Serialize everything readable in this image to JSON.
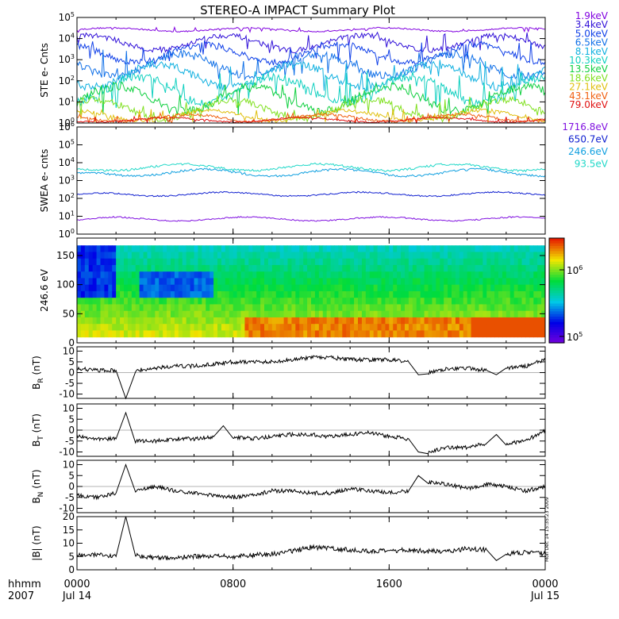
{
  "title": "STEREO-A IMPACT Summary Plot",
  "time_axis": {
    "unit_label": "hhmm",
    "year_label": "2007",
    "ticks": [
      {
        "t": 0,
        "line1": "0000",
        "line2": "Jul 14"
      },
      {
        "t": 8,
        "line1": "0800",
        "line2": ""
      },
      {
        "t": 16,
        "line1": "1600",
        "line2": ""
      },
      {
        "t": 24,
        "line1": "0000",
        "line2": "Jul 15"
      }
    ],
    "range_hours": [
      0,
      24
    ]
  },
  "timestamp": "Mon Dec 14 15:35:23 2009",
  "colors": {
    "ste": [
      "#8000e0",
      "#3010d8",
      "#1040e8",
      "#1070e8",
      "#10b0e0",
      "#10d0c0",
      "#10d040",
      "#80e020",
      "#e0c010",
      "#f06010",
      "#e01010"
    ],
    "swea": [
      "#8010e0",
      "#1020d0",
      "#10a0e0",
      "#20d8c8"
    ]
  },
  "chart_data": [
    {
      "type": "line",
      "ylabel": "STE e- Cnts",
      "y_scale": "log",
      "ylim": [
        1,
        100000
      ],
      "y_ticks": [
        "10^0",
        "10^1",
        "10^2",
        "10^3",
        "10^4",
        "10^5"
      ],
      "series": [
        {
          "name": "1.9keV",
          "approx_level": [
            20000,
            35000
          ]
        },
        {
          "name": "3.4keV",
          "approx_level": [
            2000,
            20000
          ]
        },
        {
          "name": "5.0keV",
          "approx_level": [
            500,
            8000
          ]
        },
        {
          "name": "6.5keV",
          "approx_level": [
            100,
            3000
          ]
        },
        {
          "name": "8.1keV",
          "approx_level": [
            30,
            1000
          ]
        },
        {
          "name": "10.3keV",
          "approx_level": [
            5,
            300
          ]
        },
        {
          "name": "13.5keV",
          "approx_level": [
            2,
            100
          ]
        },
        {
          "name": "18.6keV",
          "approx_level": [
            1,
            20
          ]
        },
        {
          "name": "27.1keV",
          "approx_level": [
            1,
            5
          ]
        },
        {
          "name": "43.1keV",
          "approx_level": [
            1,
            3
          ]
        },
        {
          "name": "79.0keV",
          "approx_level": [
            1,
            2
          ]
        }
      ]
    },
    {
      "type": "line",
      "ylabel": "SWEA e- cnts",
      "y_scale": "log",
      "ylim": [
        1,
        1000000
      ],
      "y_ticks": [
        "10^0",
        "10^1",
        "10^2",
        "10^3",
        "10^4",
        "10^5",
        "10^6"
      ],
      "series": [
        {
          "name": "1716.8eV",
          "approx_level": [
            5,
            10
          ]
        },
        {
          "name": "650.7eV",
          "approx_level": [
            120,
            250
          ]
        },
        {
          "name": "246.6eV",
          "approx_level": [
            1500,
            5000
          ]
        },
        {
          "name": "93.5eV",
          "approx_level": [
            3000,
            10000
          ]
        }
      ]
    },
    {
      "type": "heatmap",
      "ylabel": "246.6 eV",
      "ylim": [
        0,
        180
      ],
      "y_ticks": [
        0,
        50,
        100,
        150
      ],
      "colorbar": {
        "ticks": [
          "10^5",
          "10^6"
        ],
        "range": [
          80000,
          3000000
        ]
      }
    },
    {
      "type": "line",
      "ylabel": "B_R (nT)",
      "ylim": [
        -12,
        12
      ],
      "y_ticks": [
        -10,
        -5,
        0,
        5,
        10
      ],
      "x": [
        0,
        1,
        2,
        2.5,
        3,
        4,
        5,
        6,
        7,
        8,
        9,
        10,
        11,
        12,
        13,
        14,
        15,
        16,
        17,
        17.5,
        18,
        19,
        20,
        21,
        21.5,
        22,
        23,
        24
      ],
      "values": [
        2,
        1,
        1,
        -12,
        1,
        2,
        3,
        3,
        4,
        5,
        5,
        5,
        6,
        7,
        7,
        6,
        6,
        6,
        5,
        -1,
        0,
        2,
        2,
        1,
        -1,
        2,
        3,
        6
      ]
    },
    {
      "type": "line",
      "ylabel": "B_T (nT)",
      "ylim": [
        -12,
        12
      ],
      "y_ticks": [
        -10,
        -5,
        0,
        5,
        10
      ],
      "x": [
        0,
        1,
        2,
        2.5,
        3,
        4,
        5,
        6,
        7,
        7.5,
        8,
        9,
        10,
        11,
        12,
        13,
        14,
        15,
        16,
        17,
        17.5,
        18,
        19,
        20,
        21,
        21.5,
        22,
        23,
        24
      ],
      "values": [
        -3,
        -4,
        -4,
        8,
        -5,
        -5,
        -4,
        -4,
        -3,
        2,
        -3,
        -4,
        -3,
        -2,
        -2,
        -3,
        -2,
        -1,
        -3,
        -4,
        -10,
        -10,
        -8,
        -8,
        -6,
        -2,
        -6,
        -5,
        0
      ]
    },
    {
      "type": "line",
      "ylabel": "B_N (nT)",
      "ylim": [
        -12,
        12
      ],
      "y_ticks": [
        -10,
        -5,
        0,
        5,
        10
      ],
      "x": [
        0,
        1,
        2,
        2.5,
        3,
        4,
        5,
        6,
        7,
        8,
        9,
        10,
        11,
        12,
        13,
        14,
        15,
        16,
        17,
        17.5,
        18,
        19,
        20,
        21,
        22,
        23,
        24
      ],
      "values": [
        -4,
        -5,
        -3,
        10,
        -2,
        0,
        -2,
        -3,
        -4,
        -5,
        -4,
        -2,
        -2,
        -3,
        -3,
        -1,
        -2,
        -3,
        -2,
        5,
        2,
        1,
        -1,
        1,
        0,
        -2,
        0
      ]
    },
    {
      "type": "line",
      "ylabel": "|B| (nT)",
      "ylim": [
        0,
        20
      ],
      "y_ticks": [
        0,
        5,
        10,
        15,
        20
      ],
      "x": [
        0,
        1,
        2,
        2.5,
        3,
        4,
        5,
        6,
        7,
        8,
        9,
        10,
        11,
        12,
        13,
        14,
        15,
        16,
        17,
        18,
        19,
        20,
        21,
        21.5,
        22,
        23,
        24
      ],
      "values": [
        5.5,
        5.5,
        5,
        20,
        5.5,
        4.5,
        4.5,
        5,
        5,
        5,
        5.5,
        6,
        7,
        8.5,
        8,
        7.5,
        7,
        7,
        7.5,
        7,
        7,
        8,
        7.5,
        3.5,
        6,
        6.5,
        6
      ]
    }
  ]
}
